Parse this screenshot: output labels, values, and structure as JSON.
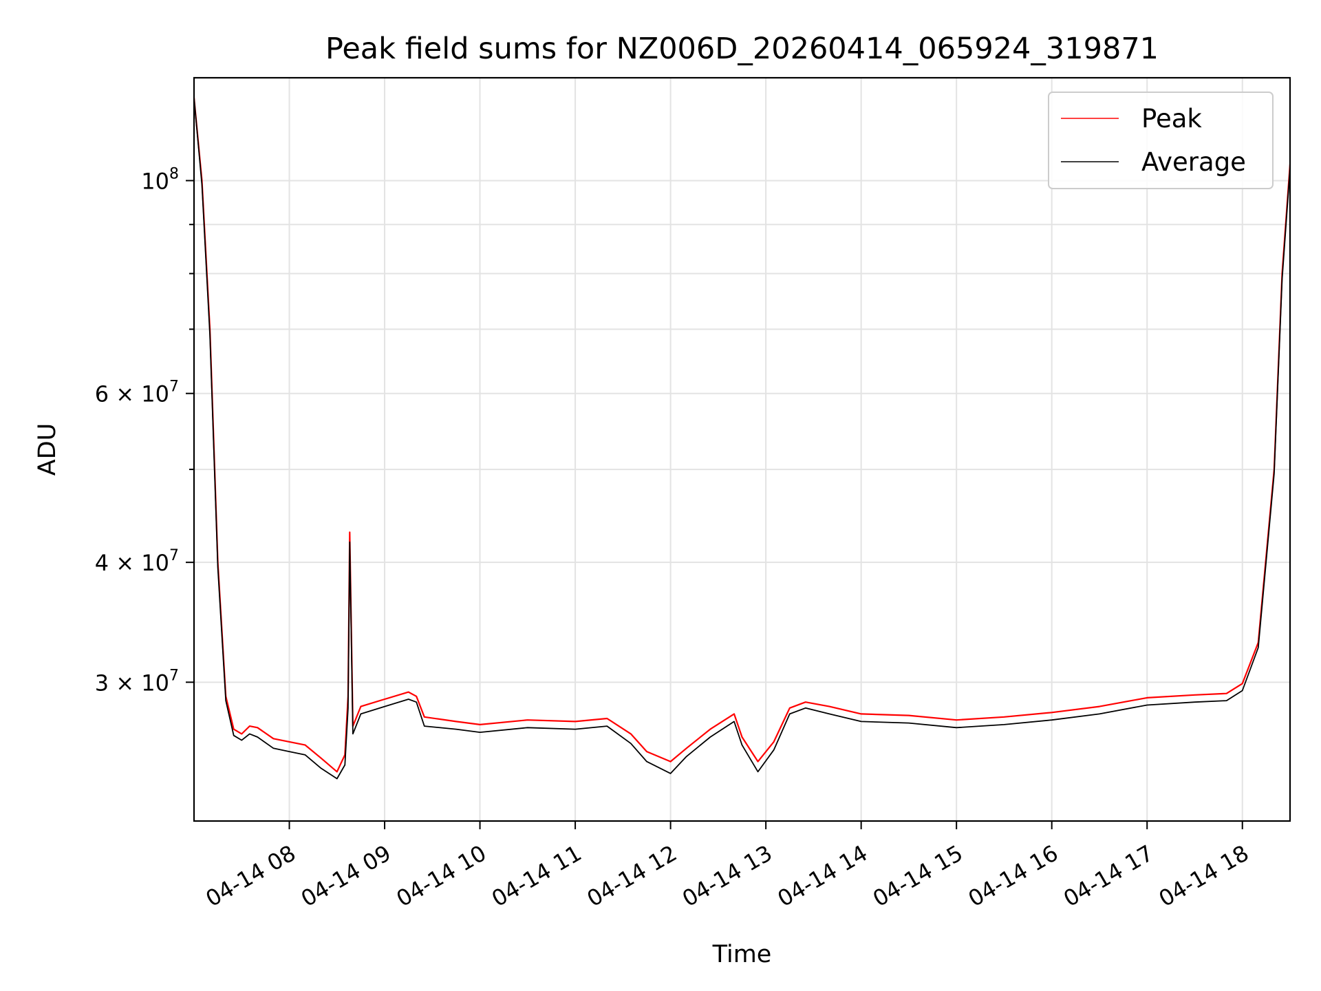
{
  "chart_data": {
    "type": "line",
    "title": "Peak field sums for NZ006D_20260414_065924_319871",
    "xlabel": "Time",
    "ylabel": "ADU",
    "yscale": "log",
    "grid": true,
    "legend_position": "top-right",
    "xlim": [
      "2026-04-14 07:00",
      "2026-04-14 18:30"
    ],
    "ylim": [
      21500000,
      128000000
    ],
    "x_ticks": [
      {
        "value": "2026-04-14 08:00",
        "label": "04-14 08"
      },
      {
        "value": "2026-04-14 09:00",
        "label": "04-14 09"
      },
      {
        "value": "2026-04-14 10:00",
        "label": "04-14 10"
      },
      {
        "value": "2026-04-14 11:00",
        "label": "04-14 11"
      },
      {
        "value": "2026-04-14 12:00",
        "label": "04-14 12"
      },
      {
        "value": "2026-04-14 13:00",
        "label": "04-14 13"
      },
      {
        "value": "2026-04-14 14:00",
        "label": "04-14 14"
      },
      {
        "value": "2026-04-14 15:00",
        "label": "04-14 15"
      },
      {
        "value": "2026-04-14 16:00",
        "label": "04-14 16"
      },
      {
        "value": "2026-04-14 17:00",
        "label": "04-14 17"
      },
      {
        "value": "2026-04-14 18:00",
        "label": "04-14 18"
      }
    ],
    "y_ticks": [
      {
        "value": 100000000,
        "base": "10",
        "exp": "8"
      },
      {
        "value": 60000000,
        "base": "6 × 10",
        "exp": "7"
      },
      {
        "value": 40000000,
        "base": "4 × 10",
        "exp": "7"
      },
      {
        "value": 30000000,
        "base": "3 × 10",
        "exp": "7"
      }
    ],
    "y_minor_ticks": [
      50000000,
      70000000,
      80000000,
      90000000
    ],
    "series": [
      {
        "name": "Peak",
        "color": "#ff0000",
        "x": [
          "2026-04-14 07:00",
          "2026-04-14 07:05",
          "2026-04-14 07:10",
          "2026-04-14 07:15",
          "2026-04-14 07:20",
          "2026-04-14 07:25",
          "2026-04-14 07:30",
          "2026-04-14 07:35",
          "2026-04-14 07:40",
          "2026-04-14 07:50",
          "2026-04-14 08:00",
          "2026-04-14 08:10",
          "2026-04-14 08:20",
          "2026-04-14 08:30",
          "2026-04-14 08:35",
          "2026-04-14 08:37",
          "2026-04-14 08:38",
          "2026-04-14 08:40",
          "2026-04-14 08:45",
          "2026-04-14 09:00",
          "2026-04-14 09:15",
          "2026-04-14 09:20",
          "2026-04-14 09:25",
          "2026-04-14 09:45",
          "2026-04-14 10:00",
          "2026-04-14 10:30",
          "2026-04-14 11:00",
          "2026-04-14 11:20",
          "2026-04-14 11:35",
          "2026-04-14 11:45",
          "2026-04-14 12:00",
          "2026-04-14 12:10",
          "2026-04-14 12:25",
          "2026-04-14 12:40",
          "2026-04-14 12:45",
          "2026-04-14 12:55",
          "2026-04-14 13:05",
          "2026-04-14 13:15",
          "2026-04-14 13:25",
          "2026-04-14 13:40",
          "2026-04-14 14:00",
          "2026-04-14 14:30",
          "2026-04-14 15:00",
          "2026-04-14 15:30",
          "2026-04-14 16:00",
          "2026-04-14 16:30",
          "2026-04-14 17:00",
          "2026-04-14 17:30",
          "2026-04-14 17:50",
          "2026-04-14 18:00",
          "2026-04-14 18:10",
          "2026-04-14 18:20",
          "2026-04-14 18:25",
          "2026-04-14 18:30"
        ],
        "values": [
          122000000,
          100000000,
          70000000,
          40000000,
          29000000,
          26800000,
          26500000,
          27000000,
          26900000,
          26200000,
          26000000,
          25800000,
          25000000,
          24200000,
          25200000,
          29000000,
          43000000,
          27000000,
          28300000,
          28800000,
          29300000,
          29000000,
          27600000,
          27300000,
          27100000,
          27400000,
          27300000,
          27500000,
          26500000,
          25400000,
          24800000,
          25600000,
          26800000,
          27800000,
          26300000,
          24800000,
          26000000,
          28200000,
          28600000,
          28300000,
          27800000,
          27700000,
          27400000,
          27600000,
          27900000,
          28300000,
          28900000,
          29100000,
          29200000,
          29900000,
          33000000,
          50000000,
          80000000,
          104000000
        ]
      },
      {
        "name": "Average",
        "color": "#000000",
        "x": [
          "2026-04-14 07:00",
          "2026-04-14 07:05",
          "2026-04-14 07:10",
          "2026-04-14 07:15",
          "2026-04-14 07:20",
          "2026-04-14 07:25",
          "2026-04-14 07:30",
          "2026-04-14 07:35",
          "2026-04-14 07:40",
          "2026-04-14 07:50",
          "2026-04-14 08:00",
          "2026-04-14 08:10",
          "2026-04-14 08:20",
          "2026-04-14 08:30",
          "2026-04-14 08:35",
          "2026-04-14 08:37",
          "2026-04-14 08:38",
          "2026-04-14 08:40",
          "2026-04-14 08:45",
          "2026-04-14 09:00",
          "2026-04-14 09:15",
          "2026-04-14 09:20",
          "2026-04-14 09:25",
          "2026-04-14 09:45",
          "2026-04-14 10:00",
          "2026-04-14 10:30",
          "2026-04-14 11:00",
          "2026-04-14 11:20",
          "2026-04-14 11:35",
          "2026-04-14 11:45",
          "2026-04-14 12:00",
          "2026-04-14 12:10",
          "2026-04-14 12:25",
          "2026-04-14 12:40",
          "2026-04-14 12:45",
          "2026-04-14 12:55",
          "2026-04-14 13:05",
          "2026-04-14 13:15",
          "2026-04-14 13:25",
          "2026-04-14 13:40",
          "2026-04-14 14:00",
          "2026-04-14 14:30",
          "2026-04-14 15:00",
          "2026-04-14 15:30",
          "2026-04-14 16:00",
          "2026-04-14 16:30",
          "2026-04-14 17:00",
          "2026-04-14 17:30",
          "2026-04-14 17:50",
          "2026-04-14 18:00",
          "2026-04-14 18:10",
          "2026-04-14 18:20",
          "2026-04-14 18:25",
          "2026-04-14 18:30"
        ],
        "values": [
          122000000,
          99000000,
          69000000,
          39500000,
          28700000,
          26400000,
          26100000,
          26500000,
          26300000,
          25600000,
          25400000,
          25200000,
          24400000,
          23800000,
          24600000,
          28200000,
          42000000,
          26500000,
          27800000,
          28300000,
          28800000,
          28600000,
          27000000,
          26800000,
          26600000,
          26900000,
          26800000,
          27000000,
          25900000,
          24800000,
          24100000,
          25100000,
          26300000,
          27300000,
          25800000,
          24200000,
          25500000,
          27800000,
          28200000,
          27800000,
          27300000,
          27200000,
          26900000,
          27100000,
          27400000,
          27800000,
          28400000,
          28600000,
          28700000,
          29400000,
          32600000,
          49500000,
          79000000,
          103000000
        ]
      }
    ]
  }
}
